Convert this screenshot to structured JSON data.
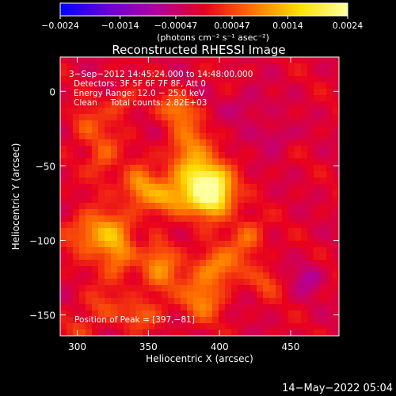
{
  "chart_data": {
    "type": "heatmap",
    "title": "Reconstructed RHESSI Image",
    "xlabel": "Heliocentric X (arcsec)",
    "ylabel": "Heliocentric Y (arcsec)",
    "xlim": [
      288,
      484
    ],
    "ylim": [
      -164,
      23
    ],
    "x_ticks": [
      300,
      350,
      400,
      450
    ],
    "y_ticks": [
      0,
      -50,
      -100,
      -150
    ],
    "x_tick_labels": [
      "300",
      "350",
      "400",
      "450"
    ],
    "y_tick_labels": [
      "0",
      "−50",
      "−100",
      "−150"
    ],
    "colorbar": {
      "min": -0.0024,
      "max": 0.0024,
      "tick_labels": [
        "−0.0024",
        "−0.0014",
        "−0.00047",
        "0.00047",
        "0.0014",
        "0.0024"
      ],
      "ticks": [
        -0.0024,
        -0.0014,
        -0.00047,
        0.00047,
        0.0014,
        0.0024
      ],
      "units_label": "(photons cm⁻² s⁻¹ asec⁻²)",
      "colors": [
        "#0000ff",
        "#6a00d8",
        "#b000a0",
        "#e8001e",
        "#ff7000",
        "#ffe000",
        "#ffffa0"
      ]
    },
    "annotations": [
      "3−Sep−2012 14:45:24.000 to 14:48:00.000",
      "Detectors: 3F 5F 6F 7F 8F, Att 0",
      "Energy Range: 12.0 − 25.0 keV",
      "Clean     Total counts: 2.82E+03"
    ],
    "peak_label": "Position of Peak = [397,−81]",
    "peak": [
      397,
      -81
    ],
    "footer_date": "14−May−2022 05:04",
    "sources": [
      {
        "x": 395,
        "y": -70,
        "sx": 10,
        "sy": 10,
        "a": 0.0024
      },
      {
        "x": 388,
        "y": -58,
        "sx": 12,
        "sy": 9,
        "a": 0.0014
      },
      {
        "x": 378,
        "y": -40,
        "sx": 10,
        "sy": 14,
        "a": 0.0011
      },
      {
        "x": 370,
        "y": -12,
        "sx": 9,
        "sy": 7,
        "a": 0.0009
      },
      {
        "x": 362,
        "y": -72,
        "sx": 14,
        "sy": 8,
        "a": 0.0012
      },
      {
        "x": 343,
        "y": -62,
        "sx": 8,
        "sy": 8,
        "a": 0.0011
      },
      {
        "x": 314,
        "y": -95,
        "sx": 14,
        "sy": 10,
        "a": 0.0013
      },
      {
        "x": 328,
        "y": -110,
        "sx": 8,
        "sy": 12,
        "a": 0.001
      },
      {
        "x": 318,
        "y": -42,
        "sx": 8,
        "sy": 12,
        "a": 0.0008
      },
      {
        "x": 305,
        "y": -22,
        "sx": 7,
        "sy": 8,
        "a": 0.0007
      },
      {
        "x": 332,
        "y": -8,
        "sx": 8,
        "sy": 7,
        "a": 0.0006
      },
      {
        "x": 358,
        "y": -118,
        "sx": 10,
        "sy": 14,
        "a": 0.001
      },
      {
        "x": 398,
        "y": -118,
        "sx": 12,
        "sy": 9,
        "a": 0.0011
      },
      {
        "x": 388,
        "y": -140,
        "sx": 10,
        "sy": 10,
        "a": 0.001
      },
      {
        "x": 420,
        "y": -98,
        "sx": 8,
        "sy": 9,
        "a": 0.0009
      },
      {
        "x": 433,
        "y": -128,
        "sx": 7,
        "sy": 7,
        "a": 0.0006
      },
      {
        "x": 315,
        "y": -145,
        "sx": 9,
        "sy": 8,
        "a": 0.0006
      },
      {
        "x": 345,
        "y": -150,
        "sx": 10,
        "sy": 7,
        "a": 0.0007
      },
      {
        "x": 300,
        "y": -160,
        "sx": 7,
        "sy": 5,
        "a": 0.0005
      },
      {
        "x": 440,
        "y": -30,
        "sx": 8,
        "sy": 6,
        "a": -0.0005
      },
      {
        "x": 462,
        "y": -125,
        "sx": 7,
        "sy": 7,
        "a": -0.0006
      },
      {
        "x": 420,
        "y": -10,
        "sx": 10,
        "sy": 8,
        "a": -0.0004
      },
      {
        "x": 345,
        "y": -100,
        "sx": 5,
        "sy": 5,
        "a": -0.0004
      }
    ],
    "grid": false
  }
}
